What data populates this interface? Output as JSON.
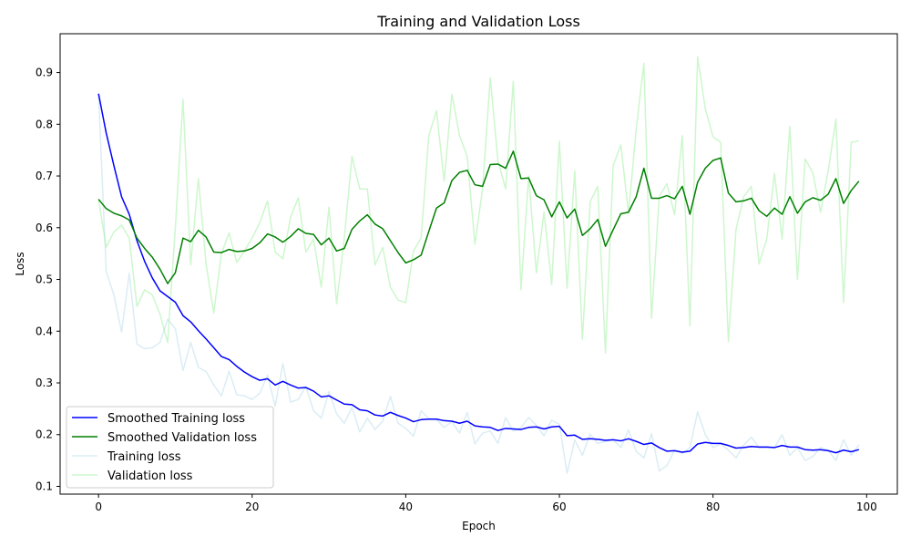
{
  "chart_data": {
    "type": "line",
    "title": "Training and Validation Loss",
    "xlabel": "Epoch",
    "ylabel": "Loss",
    "xlim": [
      -5,
      104
    ],
    "ylim": [
      0.085,
      0.975
    ],
    "xticks": [
      0,
      20,
      40,
      60,
      80,
      100
    ],
    "yticks": [
      0.1,
      0.2,
      0.3,
      0.4,
      0.5,
      0.6,
      0.7,
      0.8,
      0.9
    ],
    "legend_position": "lower-left",
    "series": [
      {
        "name": "Smoothed Training loss",
        "color": "#0000ff",
        "opacity": 1,
        "x_start": 0,
        "values": [
          0.859,
          0.783,
          0.72,
          0.66,
          0.626,
          0.575,
          0.535,
          0.503,
          0.478,
          0.467,
          0.456,
          0.43,
          0.418,
          0.401,
          0.385,
          0.368,
          0.351,
          0.345,
          0.332,
          0.321,
          0.312,
          0.305,
          0.308,
          0.296,
          0.303,
          0.296,
          0.29,
          0.291,
          0.284,
          0.273,
          0.275,
          0.267,
          0.259,
          0.258,
          0.248,
          0.246,
          0.238,
          0.236,
          0.243,
          0.237,
          0.232,
          0.225,
          0.229,
          0.23,
          0.23,
          0.227,
          0.226,
          0.222,
          0.226,
          0.217,
          0.215,
          0.214,
          0.208,
          0.212,
          0.211,
          0.21,
          0.214,
          0.215,
          0.211,
          0.215,
          0.216,
          0.198,
          0.199,
          0.191,
          0.192,
          0.191,
          0.189,
          0.19,
          0.188,
          0.192,
          0.187,
          0.181,
          0.184,
          0.175,
          0.168,
          0.169,
          0.166,
          0.168,
          0.182,
          0.185,
          0.183,
          0.183,
          0.179,
          0.174,
          0.175,
          0.177,
          0.176,
          0.176,
          0.175,
          0.179,
          0.176,
          0.176,
          0.171,
          0.17,
          0.171,
          0.169,
          0.165,
          0.17,
          0.167,
          0.171
        ]
      },
      {
        "name": "Smoothed Validation loss",
        "color": "#008000",
        "opacity": 1,
        "x_start": 0,
        "values": [
          0.655,
          0.637,
          0.628,
          0.623,
          0.615,
          0.58,
          0.56,
          0.543,
          0.52,
          0.492,
          0.513,
          0.58,
          0.573,
          0.595,
          0.582,
          0.553,
          0.552,
          0.558,
          0.554,
          0.555,
          0.56,
          0.571,
          0.588,
          0.582,
          0.572,
          0.583,
          0.598,
          0.589,
          0.587,
          0.567,
          0.58,
          0.555,
          0.56,
          0.597,
          0.613,
          0.625,
          0.607,
          0.598,
          0.575,
          0.552,
          0.532,
          0.538,
          0.547,
          0.593,
          0.638,
          0.648,
          0.691,
          0.707,
          0.711,
          0.683,
          0.68,
          0.722,
          0.723,
          0.715,
          0.748,
          0.695,
          0.696,
          0.662,
          0.654,
          0.621,
          0.65,
          0.619,
          0.636,
          0.585,
          0.598,
          0.616,
          0.564,
          0.596,
          0.627,
          0.63,
          0.66,
          0.715,
          0.657,
          0.657,
          0.662,
          0.656,
          0.68,
          0.626,
          0.688,
          0.715,
          0.73,
          0.735,
          0.667,
          0.65,
          0.652,
          0.657,
          0.633,
          0.622,
          0.638,
          0.626,
          0.66,
          0.628,
          0.65,
          0.658,
          0.653,
          0.665,
          0.695,
          0.647,
          0.672,
          0.69
        ]
      },
      {
        "name": "Training loss",
        "color": "#add8e6",
        "opacity": 0.45,
        "x_start": 0,
        "values": [
          0.86,
          0.515,
          0.47,
          0.398,
          0.512,
          0.375,
          0.366,
          0.368,
          0.378,
          0.423,
          0.405,
          0.324,
          0.378,
          0.33,
          0.322,
          0.296,
          0.275,
          0.323,
          0.277,
          0.275,
          0.268,
          0.28,
          0.315,
          0.255,
          0.337,
          0.263,
          0.268,
          0.293,
          0.246,
          0.232,
          0.283,
          0.24,
          0.222,
          0.253,
          0.205,
          0.232,
          0.21,
          0.226,
          0.274,
          0.222,
          0.212,
          0.197,
          0.246,
          0.231,
          0.229,
          0.214,
          0.225,
          0.203,
          0.243,
          0.182,
          0.203,
          0.207,
          0.183,
          0.233,
          0.207,
          0.214,
          0.233,
          0.218,
          0.198,
          0.228,
          0.22,
          0.125,
          0.19,
          0.16,
          0.201,
          0.183,
          0.187,
          0.19,
          0.175,
          0.209,
          0.168,
          0.155,
          0.202,
          0.13,
          0.14,
          0.17,
          0.164,
          0.175,
          0.244,
          0.2,
          0.175,
          0.182,
          0.17,
          0.155,
          0.18,
          0.195,
          0.175,
          0.175,
          0.175,
          0.2,
          0.16,
          0.175,
          0.15,
          0.158,
          0.175,
          0.17,
          0.15,
          0.19,
          0.16,
          0.18
        ]
      },
      {
        "name": "Validation loss",
        "color": "#90ee90",
        "opacity": 0.45,
        "x_start": 0,
        "values": [
          0.655,
          0.562,
          0.592,
          0.605,
          0.58,
          0.448,
          0.48,
          0.47,
          0.433,
          0.378,
          0.6,
          0.848,
          0.528,
          0.695,
          0.53,
          0.435,
          0.55,
          0.59,
          0.533,
          0.555,
          0.58,
          0.61,
          0.652,
          0.553,
          0.54,
          0.62,
          0.658,
          0.553,
          0.578,
          0.485,
          0.64,
          0.453,
          0.58,
          0.738,
          0.675,
          0.675,
          0.528,
          0.562,
          0.485,
          0.46,
          0.455,
          0.555,
          0.58,
          0.778,
          0.826,
          0.69,
          0.858,
          0.778,
          0.738,
          0.568,
          0.675,
          0.89,
          0.73,
          0.675,
          0.883,
          0.48,
          0.7,
          0.513,
          0.63,
          0.49,
          0.767,
          0.483,
          0.71,
          0.384,
          0.65,
          0.68,
          0.358,
          0.72,
          0.76,
          0.628,
          0.79,
          0.918,
          0.425,
          0.66,
          0.685,
          0.625,
          0.778,
          0.41,
          0.93,
          0.83,
          0.776,
          0.765,
          0.38,
          0.597,
          0.66,
          0.68,
          0.53,
          0.578,
          0.705,
          0.578,
          0.796,
          0.5,
          0.733,
          0.706,
          0.63,
          0.71,
          0.81,
          0.455,
          0.765,
          0.768
        ]
      }
    ]
  }
}
